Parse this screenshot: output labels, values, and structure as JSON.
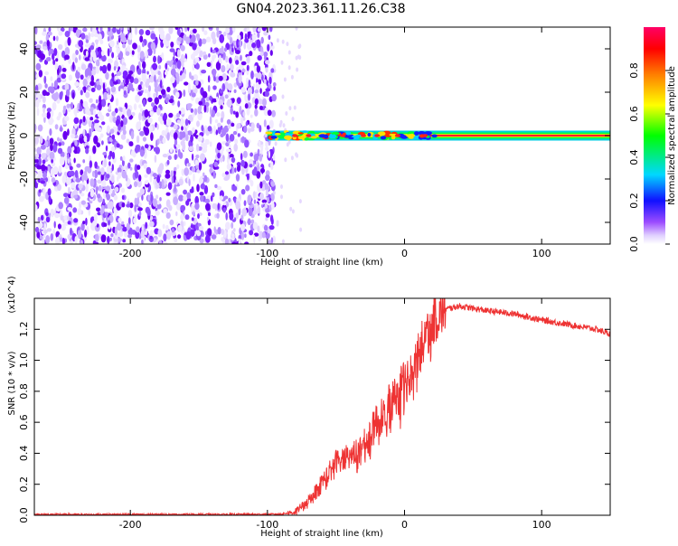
{
  "page": {
    "title": "GN04.2023.361.11.26.C38"
  },
  "chart_data": [
    {
      "type": "heatmap",
      "xlabel": "Height of straight line (km)",
      "ylabel": "Frequency (Hz)",
      "xlim": [
        -270,
        150
      ],
      "ylim": [
        -50,
        50
      ],
      "xticks": [
        -200,
        -100,
        0,
        100
      ],
      "yticks": [
        -40,
        -20,
        0,
        20,
        40
      ],
      "noise_region": {
        "x_start": -270,
        "x_end": -100,
        "value_range": [
          0.0,
          0.2
        ]
      },
      "signal_band": {
        "x_start": -100,
        "x_end": 150,
        "center_hz": 0,
        "halfwidth_hz": 2,
        "peak_value": 1.0
      },
      "colorbar": {
        "label": "Normalized spectral amplitude",
        "range": [
          0,
          1
        ],
        "ticks": [
          0.0,
          0.2,
          0.4,
          0.6,
          0.8
        ],
        "colors": [
          "#ffffff",
          "#c7b0ff",
          "#7e00ff",
          "#0000ff",
          "#00d8ff",
          "#00ff00",
          "#ffff00",
          "#ff8000",
          "#ff0000",
          "#ff0066"
        ]
      }
    },
    {
      "type": "line",
      "xlabel": "Height of straight line (km)",
      "ylabel": "SNR (10 * v/v)",
      "yscale_note": "(x10^4)",
      "xlim": [
        -270,
        150
      ],
      "ylim": [
        0.0,
        1.4
      ],
      "xticks": [
        -200,
        -100,
        0,
        100
      ],
      "yticks": [
        0.0,
        0.2,
        0.4,
        0.6,
        0.8,
        1.0,
        1.2
      ],
      "color": "#ee3333",
      "series": [
        {
          "x": [
            -270,
            -200,
            -150,
            -100,
            -90,
            -80,
            -70,
            -60,
            -50,
            -40,
            -30,
            -20,
            -10,
            0,
            10,
            20,
            30,
            40,
            60,
            80,
            100,
            120,
            140,
            150
          ],
          "y": [
            0.005,
            0.005,
            0.005,
            0.006,
            0.008,
            0.02,
            0.1,
            0.22,
            0.35,
            0.38,
            0.45,
            0.6,
            0.72,
            0.85,
            1.05,
            1.25,
            1.33,
            1.35,
            1.32,
            1.3,
            1.26,
            1.23,
            1.2,
            1.17
          ]
        }
      ]
    }
  ]
}
